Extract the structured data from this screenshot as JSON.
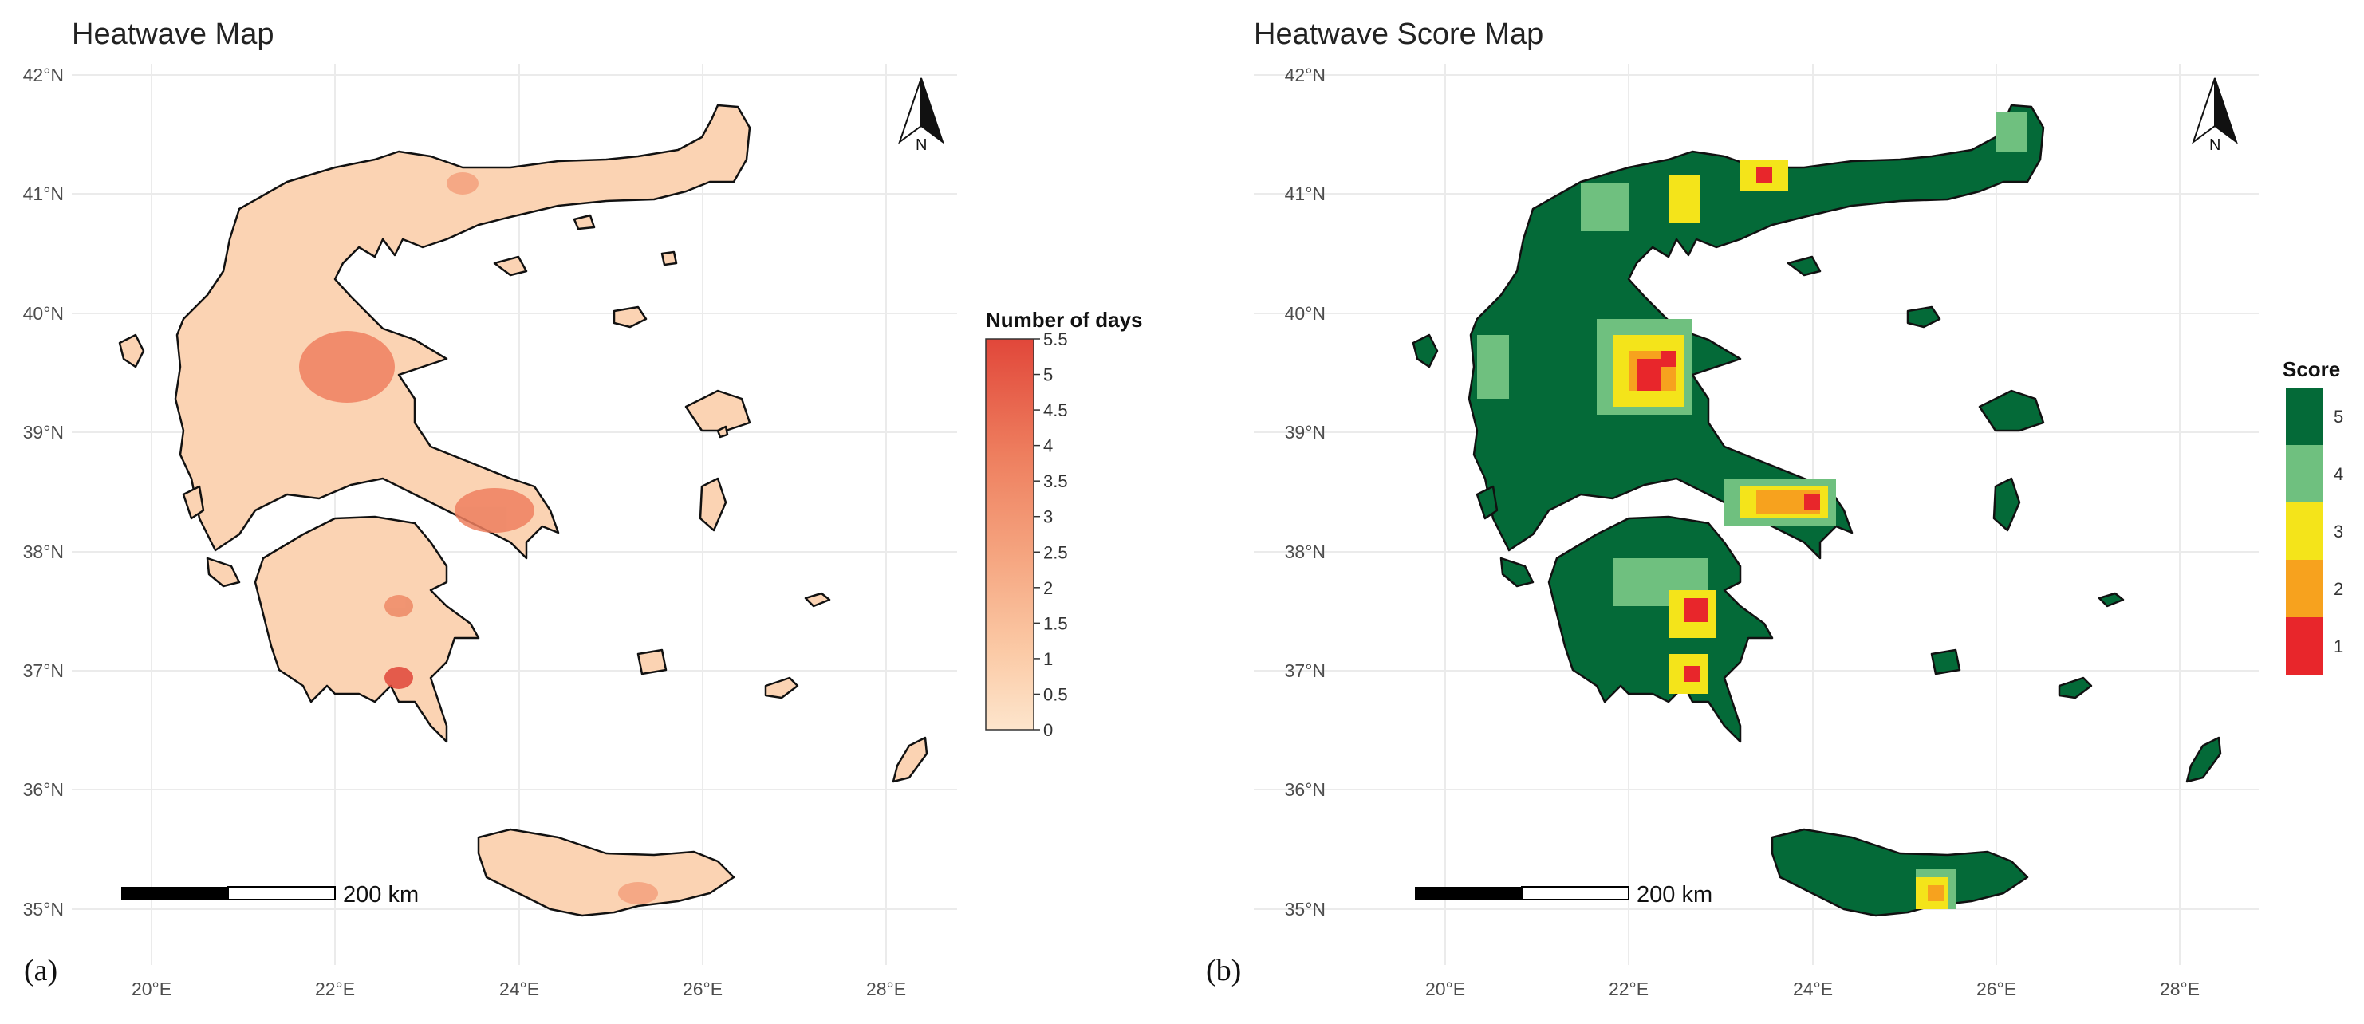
{
  "panels": [
    {
      "letter": "(a)",
      "title": "Heatwave Map",
      "legend": {
        "title": "Number of days",
        "type": "continuous",
        "ticks": [
          "5.5",
          "5",
          "4.5",
          "4",
          "3.5",
          "3",
          "2.5",
          "2",
          "1.5",
          "1",
          "0.5",
          "0"
        ],
        "colors": [
          "#fde0c5",
          "#fbc7a3",
          "#f6a682",
          "#ef8463",
          "#e8624b",
          "#e04a3c"
        ]
      },
      "north_label": "N",
      "scale_bar_label": "200 km"
    },
    {
      "letter": "(b)",
      "title": "Heatwave Score Map",
      "legend": {
        "title": "Score",
        "type": "categorical",
        "items": [
          {
            "label": "5",
            "color": "#046a38"
          },
          {
            "label": "4",
            "color": "#6fc07f"
          },
          {
            "label": "3",
            "color": "#f4e41a"
          },
          {
            "label": "2",
            "color": "#f7a21e"
          },
          {
            "label": "1",
            "color": "#e8262b"
          }
        ]
      },
      "north_label": "N",
      "scale_bar_label": "200 km"
    }
  ],
  "axes": {
    "lat_labels": [
      "42°N",
      "41°N",
      "40°N",
      "39°N",
      "38°N",
      "37°N",
      "36°N",
      "35°N"
    ],
    "lon_labels": [
      "20°E",
      "22°E",
      "24°E",
      "26°E",
      "28°E"
    ]
  }
}
